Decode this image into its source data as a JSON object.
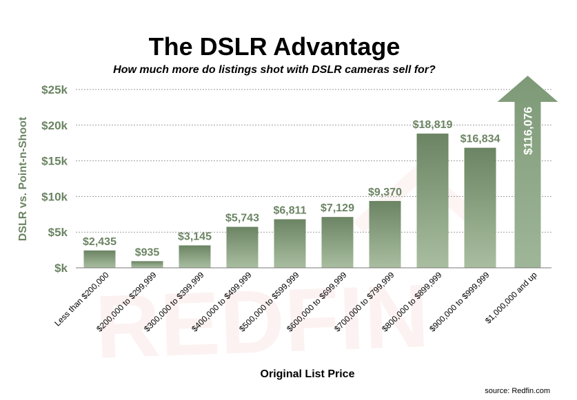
{
  "chart_data": {
    "type": "bar",
    "title": "The DSLR Advantage",
    "subtitle": "How much more do listings shot with DSLR cameras sell for?",
    "xlabel": "Original List Price",
    "ylabel": "DSLR vs. Point-n-Shoot",
    "ylim": [
      0,
      25000
    ],
    "yticks": [
      {
        "value": 0,
        "label": "$k"
      },
      {
        "value": 5000,
        "label": "$5k"
      },
      {
        "value": 10000,
        "label": "$10k"
      },
      {
        "value": 15000,
        "label": "$15k"
      },
      {
        "value": 20000,
        "label": "$20k"
      },
      {
        "value": 25000,
        "label": "$25k"
      }
    ],
    "grid": true,
    "categories": [
      "Less than $200,000",
      "$200,000 to $299,999",
      "$300,000 to $399,999",
      "$400,000 to $499,999",
      "$500,000 to $599,999",
      "$600,000 to $699,999",
      "$700,000 to $799,999",
      "$800,000 to $899,999",
      "$900,000 to $999,999",
      "$1,000,000 and up"
    ],
    "values": [
      2435,
      935,
      3145,
      5743,
      6811,
      7129,
      9370,
      18819,
      16834,
      116076
    ],
    "value_labels": [
      "$2,435",
      "$935",
      "$3,145",
      "$5,743",
      "$6,811",
      "$7,129",
      "$9,370",
      "$18,819",
      "$16,834",
      "$116,076"
    ],
    "off_scale_category": "$1,000,000 and up",
    "off_scale_marker": "up-arrow",
    "colors": {
      "bar_top": "#6b8463",
      "bar_bottom": "#a9bea0",
      "arrow": "#8aa684",
      "label": "#6b8463",
      "grid": "#9a9a9a"
    },
    "source": "source: Redfin.com",
    "watermark": "REDFIN"
  }
}
